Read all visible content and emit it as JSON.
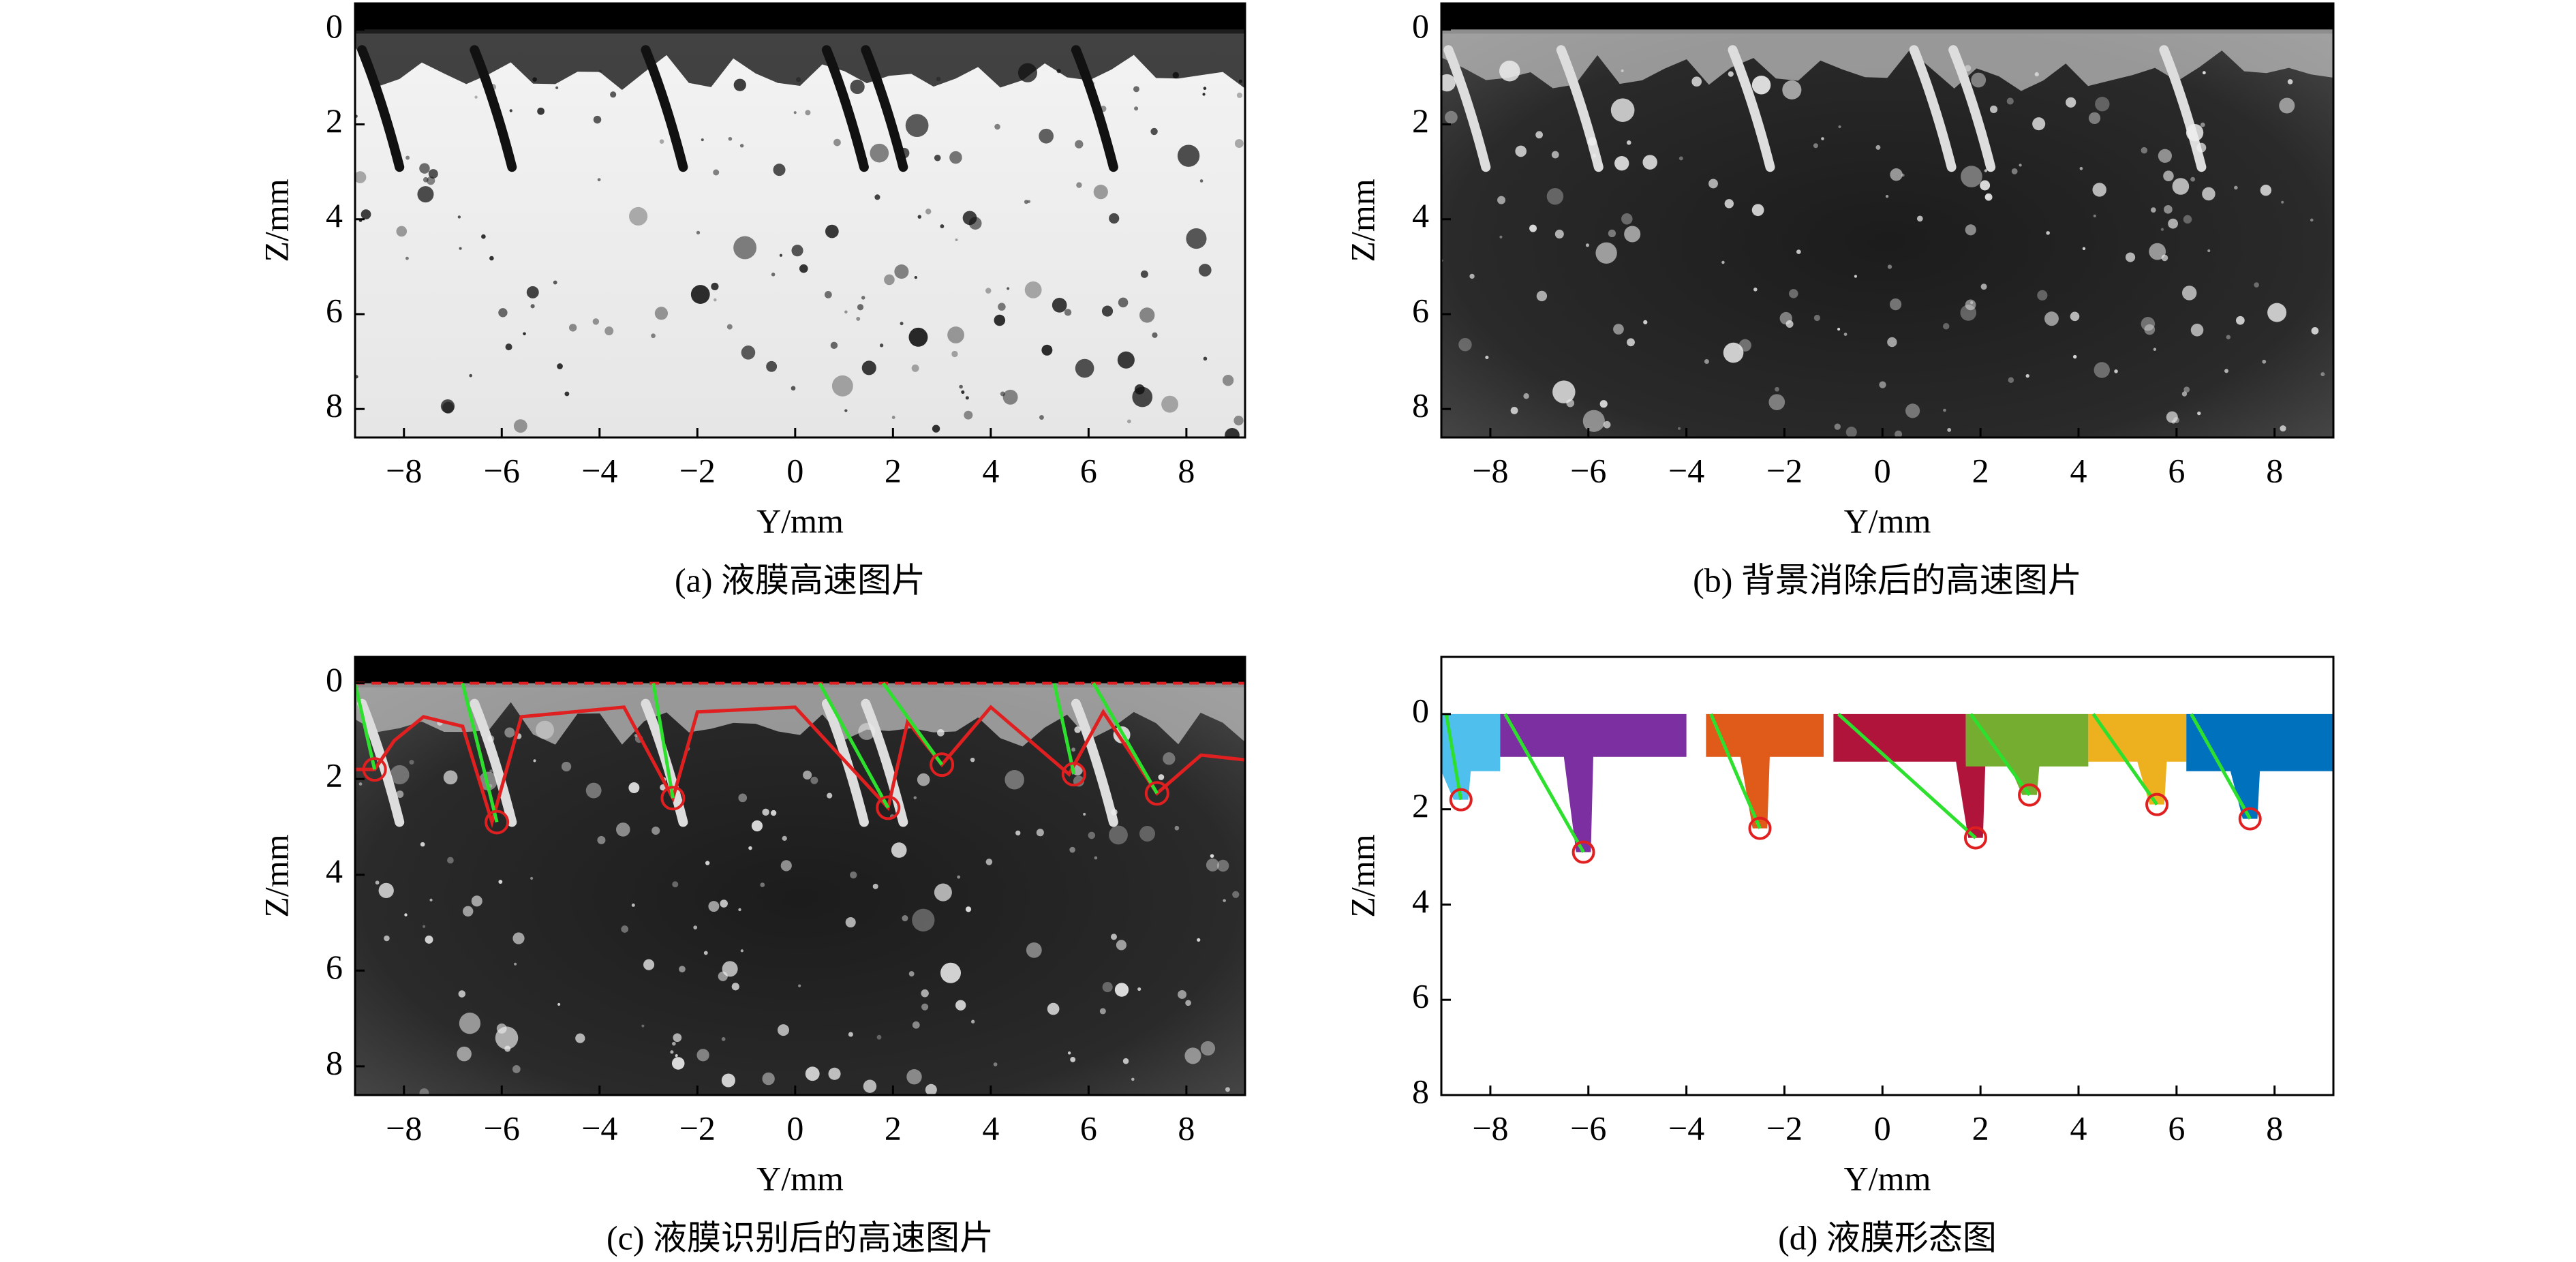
{
  "chart_data": [
    {
      "type": "image",
      "background": "light",
      "caption": "(a) 液膜高速图片",
      "xlabel": "Y/mm",
      "ylabel": "Z/mm",
      "xlim": [
        -9,
        9.2
      ],
      "ylim": [
        8.6,
        -0.55
      ],
      "xticks": [
        {
          "value": -8,
          "label": "−8"
        },
        {
          "value": -6,
          "label": "−6"
        },
        {
          "value": -4,
          "label": "−4"
        },
        {
          "value": -2,
          "label": "−2"
        },
        0,
        2,
        4,
        6,
        8
      ],
      "yticks": [
        0,
        2,
        4,
        6,
        8
      ]
    },
    {
      "type": "image",
      "background": "dark",
      "caption": "(b) 背景消除后的高速图片",
      "xlabel": "Y/mm",
      "ylabel": "Z/mm",
      "xlim": [
        -9,
        9.2
      ],
      "ylim": [
        8.6,
        -0.55
      ],
      "xticks": [
        {
          "value": -8,
          "label": "−8"
        },
        {
          "value": -6,
          "label": "−6"
        },
        {
          "value": -4,
          "label": "−4"
        },
        {
          "value": -2,
          "label": "−2"
        },
        0,
        2,
        4,
        6,
        8
      ],
      "yticks": [
        0,
        2,
        4,
        6,
        8
      ]
    },
    {
      "type": "image",
      "background": "dark",
      "contour": true,
      "caption": "(c) 液膜识别后的高速图片",
      "xlabel": "Y/mm",
      "ylabel": "Z/mm",
      "xlim": [
        -9,
        9.2
      ],
      "ylim": [
        8.6,
        -0.55
      ],
      "xticks": [
        {
          "value": -8,
          "label": "−8"
        },
        {
          "value": -6,
          "label": "−6"
        },
        {
          "value": -4,
          "label": "−4"
        },
        {
          "value": -2,
          "label": "−2"
        },
        0,
        2,
        4,
        6,
        8
      ],
      "yticks": [
        0,
        2,
        4,
        6,
        8
      ]
    },
    {
      "type": "segmentation",
      "caption": "(d) 液膜形态图",
      "xlabel": "Y/mm",
      "ylabel": "Z/mm",
      "xlim": [
        -9,
        9.2
      ],
      "ylim": [
        8,
        -1.2
      ],
      "xticks": [
        {
          "value": -8,
          "label": "−8"
        },
        {
          "value": -6,
          "label": "−6"
        },
        {
          "value": -4,
          "label": "−4"
        },
        {
          "value": -2,
          "label": "−2"
        },
        0,
        2,
        4,
        6,
        8
      ],
      "yticks": [
        0,
        2,
        4,
        6,
        8
      ],
      "colors": [
        "#4fc0ee",
        "#7b2fa0",
        "#e05a1a",
        "#b0143a",
        "#74ad2f",
        "#edb120",
        "#0072bd"
      ]
    }
  ]
}
